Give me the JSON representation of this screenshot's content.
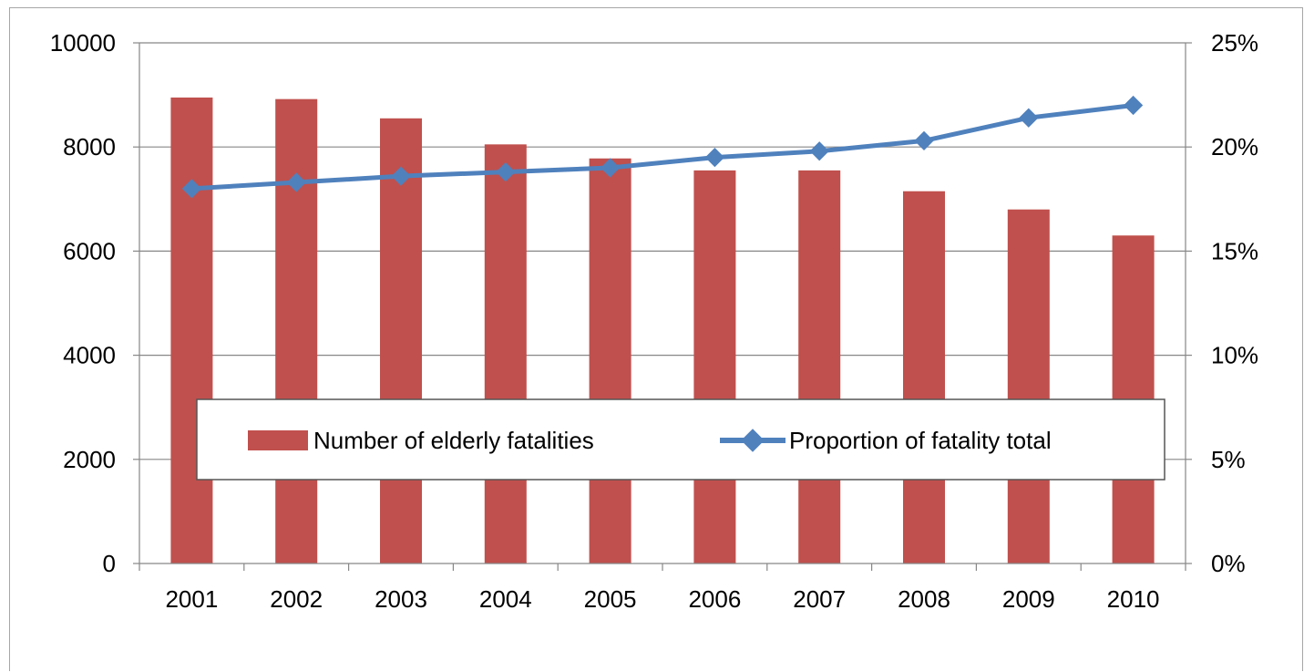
{
  "chart_data": {
    "type": "bar",
    "categories": [
      "2001",
      "2002",
      "2003",
      "2004",
      "2005",
      "2006",
      "2007",
      "2008",
      "2009",
      "2010"
    ],
    "series": [
      {
        "name": "Number of elderly fatalities",
        "type": "bar",
        "axis": "left",
        "color": "#c0504d",
        "values": [
          8950,
          8920,
          8550,
          8050,
          7780,
          7550,
          7550,
          7150,
          6800,
          6300
        ]
      },
      {
        "name": "Proportion of fatality total",
        "type": "line",
        "axis": "right",
        "marker": "diamond",
        "color": "#4f81bd",
        "values": [
          18.0,
          18.3,
          18.6,
          18.8,
          19.0,
          19.5,
          19.8,
          20.3,
          21.4,
          22.0
        ]
      }
    ],
    "y_left": {
      "lim": [
        0,
        10000
      ],
      "ticks": [
        "0",
        "2000",
        "4000",
        "6000",
        "8000",
        "10000"
      ]
    },
    "y_right": {
      "lim": [
        0,
        25
      ],
      "ticks": [
        "0%",
        "5%",
        "10%",
        "15%",
        "20%",
        "25%"
      ]
    },
    "grid": true,
    "legend": "center",
    "title": "",
    "xlabel": "",
    "ylabel": ""
  }
}
